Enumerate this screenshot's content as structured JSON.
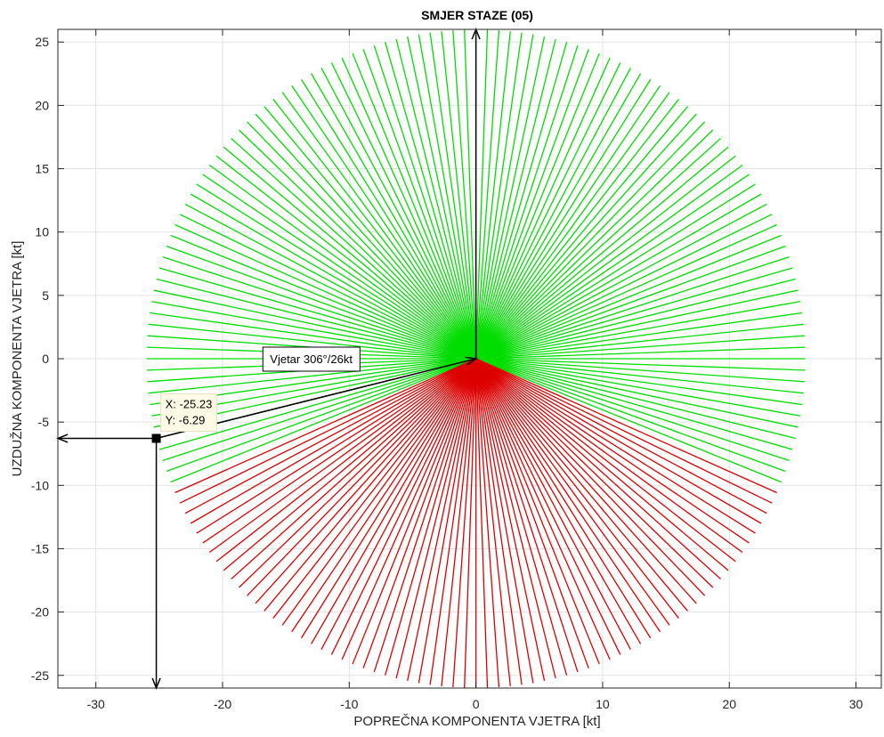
{
  "chart_data": {
    "type": "line",
    "title": "SMJER STAZE (05)",
    "xlabel": "POPREČNA KOMPONENTA VJETRA [kt]",
    "ylabel": "UZDUŽNA KOMPONENTA VJETRA [kt]",
    "xlim": [
      -33,
      32
    ],
    "ylim": [
      -26,
      26
    ],
    "xticks": [
      -30,
      -20,
      -10,
      0,
      10,
      20,
      30
    ],
    "yticks": [
      -25,
      -20,
      -15,
      -10,
      -5,
      0,
      5,
      10,
      15,
      20,
      25
    ],
    "grid": true,
    "series": [
      {
        "color": "#00dd00",
        "radius": 26,
        "angle_start_deg": -22,
        "angle_end_deg": 202,
        "angle_step_deg": 2
      },
      {
        "color": "#dd0000",
        "radius": 26,
        "angle_start_deg": 204,
        "angle_end_deg": 336,
        "angle_step_deg": 2
      }
    ],
    "runway_arrow": {
      "from": [
        0,
        0
      ],
      "to": [
        0,
        26
      ]
    },
    "wind_vector": {
      "from": [
        -25.23,
        -6.29
      ],
      "to": [
        0,
        0
      ]
    },
    "marked_point": {
      "x": -25.23,
      "y": -6.29
    },
    "projection_arrows": [
      {
        "from": [
          -25.23,
          -6.29
        ],
        "to": [
          -33,
          -6.29
        ]
      },
      {
        "from": [
          -25.23,
          -6.29
        ],
        "to": [
          -25.23,
          -26
        ]
      }
    ],
    "wind_annotation": {
      "text": "Vjetar 306°/26kt",
      "anchor": [
        -13,
        0
      ]
    },
    "datatip": {
      "x_text": "X: -25.23",
      "y_text": "Y: -6.29",
      "anchor": [
        -25.23,
        -6.29
      ]
    }
  }
}
